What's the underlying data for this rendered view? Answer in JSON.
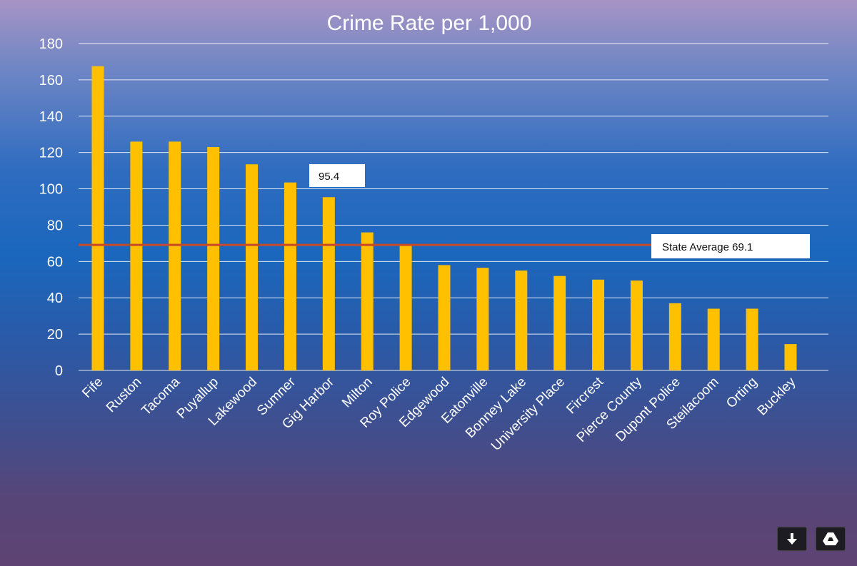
{
  "chart_data": {
    "type": "bar",
    "title": "Crime Rate per 1,000",
    "xlabel": "",
    "ylabel": "",
    "ylim": [
      0,
      180
    ],
    "yticks": [
      0,
      20,
      40,
      60,
      80,
      100,
      120,
      140,
      160,
      180
    ],
    "grid": true,
    "categories": [
      "Fife",
      "Ruston",
      "Tacoma",
      "Puyallup",
      "Lakewood",
      "Sumner",
      "Gig Harbor",
      "Milton",
      "Roy Police",
      "Edgewood",
      "Eatonville",
      "Bonney Lake",
      "University Place",
      "Fircrest",
      "Pierce County",
      "Dupont Police",
      "Steilacoom",
      "Orting",
      "Buckley"
    ],
    "values": [
      167.5,
      126,
      126,
      123,
      113.5,
      103.5,
      95.4,
      76,
      69,
      58,
      56.5,
      55,
      52,
      50,
      49.5,
      37,
      34,
      34,
      14.5
    ],
    "reference_line": {
      "value": 69.1,
      "label": "State Average 69.1",
      "color": "#c8482a"
    },
    "annotations": [
      {
        "category": "Gig Harbor",
        "text": "95.4"
      }
    ],
    "bar_color": "#ffc000"
  },
  "controls": {
    "download_icon": "download-arrow-icon",
    "drive_icon": "google-drive-icon"
  }
}
